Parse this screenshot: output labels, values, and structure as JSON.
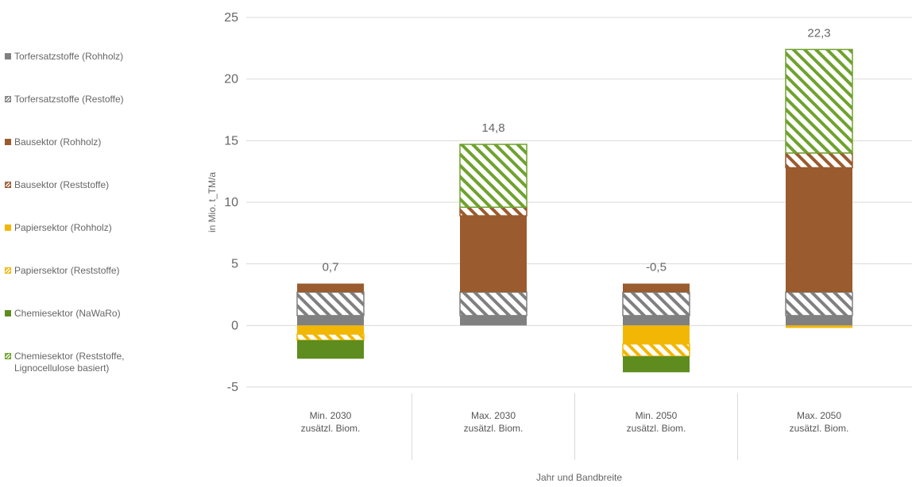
{
  "chart_data": {
    "type": "bar",
    "stacked": true,
    "ylabel": "in Mio. t_TM/a",
    "xlabel": "Jahr und Bandbreite",
    "ylim": [
      -5,
      25
    ],
    "yticks": [
      -5,
      0,
      5,
      10,
      15,
      20,
      25
    ],
    "grid": true,
    "legend_position": "left",
    "categories": [
      "Min. 2030\nzusätzl. Biom.",
      "Max. 2030\nzusätzl. Biom.",
      "Min. 2050\nzusätzl. Biom.",
      "Max. 2050\nzusätzl. Biom."
    ],
    "totals": [
      "0,7",
      "14,8",
      "-0,5",
      "22,3"
    ],
    "series": [
      {
        "name": "Torfersatzstoffe (Rohholz)",
        "color": "#808080",
        "pattern": "solid",
        "values": [
          0.8,
          0.8,
          0.8,
          0.8
        ]
      },
      {
        "name": "Torfersatzstoffe (Restoffe)",
        "color": "#808080",
        "pattern": "hatch",
        "values": [
          1.9,
          1.9,
          1.9,
          1.9
        ]
      },
      {
        "name": "Bausektor (Rohholz)",
        "color": "#9A5B2E",
        "pattern": "solid",
        "values": [
          0.7,
          6.2,
          0.7,
          10.1
        ]
      },
      {
        "name": "Bausektor (Reststoffe)",
        "color": "#9A5B2E",
        "pattern": "hatch",
        "values": [
          0,
          0.7,
          0,
          1.2
        ]
      },
      {
        "name": "Papiersektor (Rohholz)",
        "color": "#F2B705",
        "pattern": "solid",
        "values": [
          -0.7,
          0,
          -1.5,
          -0.2
        ]
      },
      {
        "name": "Papiersektor (Reststoffe)",
        "color": "#F2B705",
        "pattern": "hatch",
        "values": [
          -0.5,
          0,
          -1.0,
          0
        ]
      },
      {
        "name": "Chemiesektor (NaWaRo)",
        "color": "#5E8C1E",
        "pattern": "solid",
        "values": [
          -1.5,
          0,
          -1.3,
          0
        ]
      },
      {
        "name": "Chemiesektor (Reststoffe,\nLignocellulose basiert)",
        "color": "#6FA22E",
        "pattern": "hatch",
        "values": [
          0,
          5.1,
          0,
          8.4
        ]
      }
    ]
  }
}
